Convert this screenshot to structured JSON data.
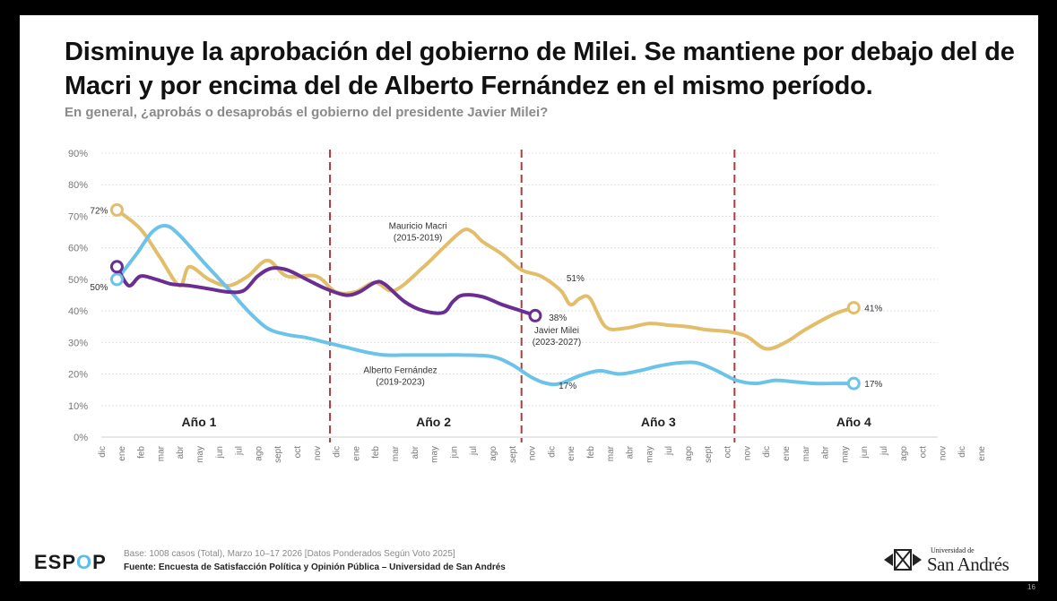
{
  "slide": {
    "title": "Disminuye la aprobación del gobierno de Milei. Se mantiene por debajo del de Macri y por encima del de Alberto Fernández en el mismo período.",
    "subtitle": "En general, ¿aprobás o desaprobás el gobierno del presidente Javier Milei?",
    "page_number": "16"
  },
  "footer": {
    "logo_prefix": "ESP",
    "logo_o": "O",
    "logo_suffix": "P",
    "base": "Base: 1008 casos (Total), Marzo 10–17 2026 [Datos Ponderados Según Voto 2025]",
    "source": "Fuente: Encuesta de Satisfacción Política y Opinión Pública – Universidad de San Andrés",
    "university_small": "Universidad de",
    "university_big": "San Andrés"
  },
  "chart_data": {
    "type": "line",
    "ylim": [
      0,
      90
    ],
    "y_ticks": [
      "0%",
      "10%",
      "20%",
      "30%",
      "40%",
      "50%",
      "60%",
      "70%",
      "80%",
      "90%"
    ],
    "x_ticks": [
      "dic",
      "ene",
      "feb",
      "mar",
      "abr",
      "may",
      "jun",
      "jul",
      "ago",
      "sept",
      "oct",
      "nov",
      "dic",
      "ene",
      "feb",
      "mar",
      "abr",
      "may",
      "jun",
      "jul",
      "ago",
      "sept",
      "nov",
      "dic",
      "ene",
      "feb",
      "mar",
      "abr",
      "may",
      "jul",
      "ago",
      "sept",
      "oct",
      "nov",
      "dic",
      "ene",
      "mar",
      "abr",
      "may",
      "jun",
      "jul",
      "ago",
      "oct",
      "nov",
      "dic",
      "ene"
    ],
    "grid": true,
    "year_labels": [
      {
        "label": "Año 1",
        "x": 5
      },
      {
        "label": "Año 2",
        "x": 17
      },
      {
        "label": "Año 3",
        "x": 28.5
      },
      {
        "label": "Año 4",
        "x": 38.5
      }
    ],
    "year_separators": [
      11.7,
      21.5,
      32.4
    ],
    "series": [
      {
        "name": "Mauricio Macri\n(2015-2019)",
        "color": "#e2bd6a",
        "label_pos": [
          16.2,
          66
        ],
        "end_label": "51%",
        "end_label_pos": [
          23.8,
          50.5
        ],
        "points": [
          [
            0.8,
            72
          ],
          [
            2,
            66
          ],
          [
            3,
            57
          ],
          [
            4,
            48
          ],
          [
            4.5,
            54
          ],
          [
            5.5,
            50
          ],
          [
            6.5,
            48
          ],
          [
            7.5,
            51
          ],
          [
            8.5,
            56
          ],
          [
            9.5,
            51
          ],
          [
            11,
            51
          ],
          [
            12,
            46
          ],
          [
            13,
            46
          ],
          [
            14,
            49
          ],
          [
            15,
            46.5
          ],
          [
            16.5,
            54
          ],
          [
            17.5,
            60
          ],
          [
            18.5,
            65.5
          ],
          [
            19,
            65
          ],
          [
            19.5,
            62
          ],
          [
            20.5,
            58
          ],
          [
            21.5,
            53
          ],
          [
            22.5,
            51
          ],
          [
            23.5,
            46.5
          ],
          [
            24,
            42
          ],
          [
            24.5,
            44
          ],
          [
            25,
            44
          ],
          [
            25.8,
            35
          ],
          [
            26.8,
            34.5
          ],
          [
            28,
            36
          ],
          [
            29,
            35.5
          ],
          [
            30,
            35
          ],
          [
            31,
            34
          ],
          [
            32,
            33.5
          ],
          [
            33,
            32
          ],
          [
            34,
            28
          ],
          [
            35,
            30
          ],
          [
            36,
            34
          ],
          [
            37.5,
            39
          ],
          [
            38.5,
            41
          ]
        ],
        "start_marker": true,
        "start_label": "72%",
        "end_marker_label": "41%"
      },
      {
        "name": "Alberto Fernández\n(2019-2023)",
        "color": "#6cc3ea",
        "label_pos": [
          15.3,
          20.3
        ],
        "points": [
          [
            0.8,
            50
          ],
          [
            1.8,
            58
          ],
          [
            2.6,
            65
          ],
          [
            3.3,
            67
          ],
          [
            4,
            64
          ],
          [
            5.3,
            55
          ],
          [
            6.5,
            47
          ],
          [
            7.5,
            40
          ],
          [
            8.5,
            34.5
          ],
          [
            9.5,
            32.5
          ],
          [
            10.5,
            31.5
          ],
          [
            11.5,
            30
          ],
          [
            12.5,
            28.5
          ],
          [
            13.5,
            27
          ],
          [
            14.5,
            26
          ],
          [
            15.5,
            26
          ],
          [
            17,
            26
          ],
          [
            18.5,
            26
          ],
          [
            20,
            25.5
          ],
          [
            21,
            23
          ],
          [
            22,
            19
          ],
          [
            22.8,
            17
          ],
          [
            23.5,
            17
          ],
          [
            24.5,
            19.5
          ],
          [
            25.5,
            21
          ],
          [
            26.5,
            20
          ],
          [
            27.5,
            21
          ],
          [
            28.5,
            22.5
          ],
          [
            29.5,
            23.5
          ],
          [
            30.5,
            23.5
          ],
          [
            31.5,
            21
          ],
          [
            32.5,
            18
          ],
          [
            33.5,
            17
          ],
          [
            34.5,
            18
          ],
          [
            35.5,
            17.5
          ],
          [
            36.5,
            17
          ],
          [
            37.5,
            17
          ],
          [
            38.5,
            17
          ]
        ],
        "start_marker": true,
        "start_label": "50%",
        "end_label": "17%",
        "end_label_pos": [
          23.4,
          16.5
        ],
        "end_marker_label": "17%"
      },
      {
        "name": "Javier Milei\n(2023-2027)",
        "color": "#6a2d91",
        "label_pos": [
          23.3,
          33
        ],
        "points": [
          [
            0.8,
            54
          ],
          [
            1.4,
            48
          ],
          [
            2,
            51
          ],
          [
            2.8,
            50
          ],
          [
            3.6,
            48.5
          ],
          [
            4.5,
            48
          ],
          [
            5.5,
            47
          ],
          [
            6.5,
            46
          ],
          [
            7.3,
            46.5
          ],
          [
            8,
            51
          ],
          [
            8.7,
            53.5
          ],
          [
            9.5,
            53
          ],
          [
            10.5,
            50
          ],
          [
            11.5,
            47
          ],
          [
            12.5,
            45
          ],
          [
            13.2,
            46
          ],
          [
            14,
            49
          ],
          [
            14.5,
            48.5
          ],
          [
            15.5,
            43
          ],
          [
            16.5,
            40
          ],
          [
            17.5,
            39.5
          ],
          [
            18,
            43
          ],
          [
            18.5,
            45
          ],
          [
            19.5,
            44.5
          ],
          [
            20.5,
            42
          ],
          [
            21.5,
            40
          ],
          [
            22.2,
            38.5
          ]
        ],
        "start_marker": true,
        "end_marker": true,
        "end_label": "38%",
        "end_label_pos": [
          22.9,
          38
        ]
      }
    ]
  }
}
